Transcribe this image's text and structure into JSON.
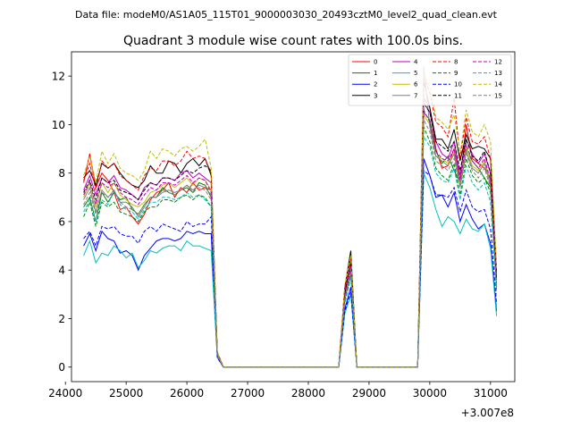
{
  "header": {
    "data_file": "Data file: modeM0/AS1A05_115T01_9000003030_20493cztM0_level2_quad_clean.evt"
  },
  "chart_data": {
    "type": "line",
    "title": "Quadrant 3 module wise count rates with 100.0s bins.",
    "xlabel": "",
    "ylabel": "",
    "offset_text": "+3.007e8",
    "xlim": [
      24100,
      31400
    ],
    "ylim": [
      -0.6,
      13.0
    ],
    "xticks": [
      24000,
      25000,
      26000,
      27000,
      28000,
      29000,
      30000,
      31000
    ],
    "xtick_labels": [
      "24000",
      "25000",
      "26000",
      "27000",
      "28000",
      "29000",
      "30000",
      "31000"
    ],
    "yticks": [
      0,
      2,
      4,
      6,
      8,
      10,
      12
    ],
    "ytick_labels": [
      "0",
      "2",
      "4",
      "6",
      "8",
      "10",
      "12"
    ],
    "grid": false,
    "legend_position": "top-right",
    "legend_columns": 4,
    "x": [
      24300,
      24400,
      24500,
      24600,
      24700,
      24800,
      24900,
      25000,
      25100,
      25200,
      25300,
      25400,
      25500,
      25600,
      25700,
      25800,
      25900,
      26000,
      26100,
      26200,
      26300,
      26400,
      26500,
      26600,
      26700,
      26800,
      26900,
      27000,
      27100,
      27200,
      27300,
      27400,
      27500,
      27600,
      27700,
      27800,
      27900,
      28000,
      28100,
      28200,
      28300,
      28400,
      28500,
      28600,
      28700,
      28800,
      28900,
      29000,
      29100,
      29200,
      29300,
      29400,
      29500,
      29600,
      29700,
      29800,
      29900,
      30000,
      30100,
      30200,
      30300,
      30400,
      30500,
      30600,
      30700,
      30800,
      30900,
      31000,
      31100
    ],
    "series": [
      {
        "name": "0",
        "color": "#ff0000",
        "dash": false,
        "values": [
          7.6,
          8.8,
          7.4,
          8.0,
          7.7,
          7.2,
          6.5,
          6.6,
          6.2,
          5.9,
          6.3,
          6.9,
          7.2,
          7.3,
          7.6,
          7.0,
          7.4,
          7.2,
          7.6,
          7.3,
          7.4,
          7.3,
          0.6,
          0,
          0,
          0,
          0,
          0,
          0,
          0,
          0,
          0,
          0,
          0,
          0,
          0,
          0,
          0,
          0,
          0,
          0,
          0,
          0,
          3.2,
          4.2,
          0,
          0,
          0,
          0,
          0,
          0,
          0,
          0,
          0,
          0,
          0,
          11.1,
          10.7,
          9.0,
          8.2,
          8.3,
          9.0,
          7.7,
          10.0,
          8.6,
          8.4,
          8.2,
          7.8,
          3.8
        ]
      },
      {
        "name": "1",
        "color": "#008000",
        "dash": false,
        "values": [
          6.6,
          7.0,
          6.0,
          7.2,
          6.8,
          7.2,
          6.9,
          7.0,
          6.5,
          6.3,
          6.7,
          7.0,
          7.0,
          7.4,
          7.2,
          7.1,
          7.3,
          7.4,
          7.2,
          7.6,
          7.5,
          7.0,
          0.5,
          0,
          0,
          0,
          0,
          0,
          0,
          0,
          0,
          0,
          0,
          0,
          0,
          0,
          0,
          0,
          0,
          0,
          0,
          0,
          0,
          2.8,
          3.9,
          0,
          0,
          0,
          0,
          0,
          0,
          0,
          0,
          0,
          0,
          0,
          10.5,
          10.2,
          8.9,
          8.4,
          8.7,
          8.1,
          7.6,
          9.0,
          8.5,
          8.2,
          7.8,
          7.4,
          3.3
        ]
      },
      {
        "name": "2",
        "color": "#0000ff",
        "dash": false,
        "values": [
          5.0,
          5.5,
          4.8,
          5.6,
          5.3,
          5.2,
          4.7,
          4.8,
          4.6,
          4.0,
          4.6,
          4.9,
          5.2,
          5.3,
          5.3,
          5.2,
          5.3,
          5.6,
          5.5,
          5.6,
          5.5,
          5.5,
          0.4,
          0,
          0,
          0,
          0,
          0,
          0,
          0,
          0,
          0,
          0,
          0,
          0,
          0,
          0,
          0,
          0,
          0,
          0,
          0,
          0,
          2.4,
          3.3,
          0,
          0,
          0,
          0,
          0,
          0,
          0,
          0,
          0,
          0,
          0,
          8.6,
          7.9,
          7.0,
          7.1,
          6.6,
          7.2,
          6.0,
          6.7,
          6.1,
          5.7,
          5.9,
          5.1,
          2.3
        ]
      },
      {
        "name": "3",
        "color": "#000000",
        "dash": false,
        "values": [
          7.8,
          8.1,
          7.5,
          8.4,
          8.2,
          8.4,
          8.0,
          7.7,
          7.5,
          7.4,
          7.7,
          8.3,
          8.0,
          8.0,
          8.5,
          8.4,
          8.0,
          8.4,
          8.6,
          8.3,
          8.6,
          7.9,
          0.6,
          0,
          0,
          0,
          0,
          0,
          0,
          0,
          0,
          0,
          0,
          0,
          0,
          0,
          0,
          0,
          0,
          0,
          0,
          0,
          0,
          3.3,
          4.8,
          0,
          0,
          0,
          0,
          0,
          0,
          0,
          0,
          0,
          0,
          0,
          11.8,
          10.7,
          9.4,
          9.4,
          9.0,
          9.8,
          8.5,
          9.6,
          9.0,
          9.1,
          9.0,
          8.6,
          4.0
        ]
      },
      {
        "name": "4",
        "color": "#bf00bf",
        "dash": false,
        "values": [
          7.3,
          7.9,
          7.1,
          7.8,
          7.6,
          7.9,
          7.4,
          7.3,
          7.1,
          6.9,
          7.4,
          7.6,
          7.5,
          7.8,
          7.8,
          7.7,
          8.0,
          8.1,
          7.8,
          8.0,
          7.8,
          7.6,
          0.6,
          0,
          0,
          0,
          0,
          0,
          0,
          0,
          0,
          0,
          0,
          0,
          0,
          0,
          0,
          0,
          0,
          0,
          0,
          0,
          0,
          3.1,
          4.3,
          0,
          0,
          0,
          0,
          0,
          0,
          0,
          0,
          0,
          0,
          0,
          10.9,
          10.5,
          9.3,
          8.8,
          8.6,
          9.3,
          7.9,
          9.4,
          8.8,
          8.4,
          8.8,
          8.0,
          3.6
        ]
      },
      {
        "name": "5",
        "color": "#00bfbf",
        "dash": false,
        "values": [
          4.6,
          5.2,
          4.3,
          4.7,
          4.6,
          5.0,
          4.8,
          4.5,
          4.7,
          4.1,
          4.4,
          4.8,
          4.7,
          4.9,
          5.0,
          5.0,
          4.8,
          5.2,
          5.0,
          5.0,
          4.9,
          4.8,
          0.4,
          0,
          0,
          0,
          0,
          0,
          0,
          0,
          0,
          0,
          0,
          0,
          0,
          0,
          0,
          0,
          0,
          0,
          0,
          0,
          0,
          2.2,
          3.0,
          0,
          0,
          0,
          0,
          0,
          0,
          0,
          0,
          0,
          0,
          0,
          8.0,
          7.4,
          6.5,
          5.8,
          6.2,
          6.0,
          5.5,
          6.1,
          5.7,
          5.6,
          5.9,
          4.9,
          2.1
        ]
      },
      {
        "name": "6",
        "color": "#bfbf00",
        "dash": false,
        "values": [
          7.0,
          7.6,
          6.6,
          7.6,
          7.2,
          7.6,
          7.1,
          6.9,
          6.7,
          6.6,
          6.8,
          7.2,
          7.3,
          7.5,
          7.6,
          7.4,
          7.6,
          7.8,
          7.5,
          7.8,
          7.7,
          7.3,
          0.5,
          0,
          0,
          0,
          0,
          0,
          0,
          0,
          0,
          0,
          0,
          0,
          0,
          0,
          0,
          0,
          0,
          0,
          0,
          0,
          0,
          2.9,
          4.1,
          0,
          0,
          0,
          0,
          0,
          0,
          0,
          0,
          0,
          0,
          0,
          10.4,
          10.0,
          8.7,
          8.6,
          8.4,
          8.8,
          7.6,
          9.1,
          8.3,
          8.1,
          8.5,
          7.6,
          3.4
        ]
      },
      {
        "name": "7",
        "color": "#808080",
        "dash": false,
        "values": [
          6.9,
          7.4,
          6.4,
          7.3,
          7.0,
          7.3,
          6.8,
          6.8,
          6.6,
          6.2,
          6.6,
          7.0,
          7.0,
          7.2,
          7.3,
          7.2,
          7.3,
          7.5,
          7.3,
          7.5,
          7.4,
          7.1,
          0.5,
          0,
          0,
          0,
          0,
          0,
          0,
          0,
          0,
          0,
          0,
          0,
          0,
          0,
          0,
          0,
          0,
          0,
          0,
          0,
          0,
          2.8,
          4.0,
          0,
          0,
          0,
          0,
          0,
          0,
          0,
          0,
          0,
          0,
          0,
          12.4,
          9.9,
          8.7,
          8.5,
          8.3,
          8.8,
          7.5,
          8.9,
          8.2,
          8.0,
          8.4,
          7.5,
          3.3
        ]
      },
      {
        "name": "8",
        "color": "#ff0000",
        "dash": true,
        "values": [
          7.7,
          8.4,
          7.3,
          8.5,
          8.2,
          8.4,
          7.9,
          7.7,
          7.5,
          7.3,
          7.9,
          8.2,
          8.1,
          8.5,
          8.5,
          8.3,
          8.5,
          8.9,
          8.6,
          8.7,
          8.6,
          8.0,
          0.6,
          0,
          0,
          0,
          0,
          0,
          0,
          0,
          0,
          0,
          0,
          0,
          0,
          0,
          0,
          0,
          0,
          0,
          0,
          0,
          0,
          3.3,
          4.5,
          0,
          0,
          0,
          0,
          0,
          0,
          0,
          0,
          0,
          0,
          0,
          12.0,
          11.3,
          10.1,
          9.9,
          9.5,
          11.1,
          8.6,
          10.3,
          9.3,
          9.2,
          9.5,
          8.6,
          3.9
        ]
      },
      {
        "name": "9",
        "color": "#008000",
        "dash": true,
        "values": [
          6.2,
          6.8,
          5.8,
          6.8,
          6.6,
          6.8,
          6.4,
          6.3,
          6.2,
          6.0,
          6.4,
          6.6,
          6.6,
          6.9,
          6.9,
          6.8,
          7.0,
          7.1,
          6.9,
          7.1,
          7.0,
          6.6,
          0.5,
          0,
          0,
          0,
          0,
          0,
          0,
          0,
          0,
          0,
          0,
          0,
          0,
          0,
          0,
          0,
          0,
          0,
          0,
          0,
          0,
          2.7,
          3.8,
          0,
          0,
          0,
          0,
          0,
          0,
          0,
          0,
          0,
          0,
          0,
          9.9,
          9.3,
          8.2,
          7.9,
          7.7,
          8.4,
          7.1,
          8.6,
          7.9,
          7.6,
          7.8,
          7.2,
          3.2
        ]
      },
      {
        "name": "10",
        "color": "#0000ff",
        "dash": true,
        "values": [
          5.3,
          5.6,
          5.0,
          5.8,
          5.7,
          5.8,
          5.5,
          5.4,
          5.4,
          5.1,
          5.6,
          5.8,
          5.6,
          5.9,
          5.8,
          5.7,
          5.6,
          6.0,
          5.8,
          5.9,
          5.9,
          6.2,
          0.4,
          0,
          0,
          0,
          0,
          0,
          0,
          0,
          0,
          0,
          0,
          0,
          0,
          0,
          0,
          0,
          0,
          0,
          0,
          0,
          0,
          2.3,
          3.1,
          0,
          0,
          0,
          0,
          0,
          0,
          0,
          0,
          0,
          0,
          0,
          8.1,
          7.9,
          7.1,
          7.1,
          7.0,
          7.4,
          6.4,
          7.3,
          6.6,
          6.4,
          6.5,
          5.7,
          2.6
        ]
      },
      {
        "name": "11",
        "color": "#000000",
        "dash": true,
        "values": [
          7.2,
          7.7,
          6.9,
          7.8,
          7.6,
          7.7,
          7.3,
          7.2,
          7.1,
          6.9,
          7.3,
          7.6,
          7.5,
          7.8,
          7.8,
          7.7,
          7.9,
          8.1,
          8.0,
          8.2,
          8.3,
          8.1,
          0.6,
          0,
          0,
          0,
          0,
          0,
          0,
          0,
          0,
          0,
          0,
          0,
          0,
          0,
          0,
          0,
          0,
          0,
          0,
          0,
          0,
          3.0,
          4.4,
          0,
          0,
          0,
          0,
          0,
          0,
          0,
          0,
          0,
          0,
          0,
          10.9,
          10.5,
          9.3,
          9.1,
          8.9,
          9.3,
          8.1,
          9.4,
          8.7,
          8.5,
          8.9,
          8.0,
          3.6
        ]
      },
      {
        "name": "12",
        "color": "#bf00bf",
        "dash": true,
        "values": [
          7.1,
          7.6,
          6.7,
          7.6,
          7.4,
          7.6,
          7.2,
          7.0,
          6.9,
          6.7,
          7.1,
          7.4,
          7.3,
          7.6,
          7.6,
          7.5,
          7.7,
          7.9,
          7.6,
          7.8,
          7.7,
          7.2,
          0.5,
          0,
          0,
          0,
          0,
          0,
          0,
          0,
          0,
          0,
          0,
          0,
          0,
          0,
          0,
          0,
          0,
          0,
          0,
          0,
          0,
          2.9,
          4.1,
          0,
          0,
          0,
          0,
          0,
          0,
          0,
          0,
          0,
          0,
          0,
          10.6,
          10.1,
          8.9,
          8.6,
          8.5,
          9.0,
          7.7,
          9.2,
          8.5,
          8.2,
          8.6,
          7.7,
          3.4
        ]
      },
      {
        "name": "13",
        "color": "#00bfbf",
        "dash": true,
        "values": [
          6.4,
          6.9,
          6.0,
          6.9,
          6.7,
          7.3,
          6.7,
          6.5,
          6.4,
          6.1,
          6.5,
          6.8,
          6.8,
          7.0,
          7.0,
          6.9,
          7.0,
          7.2,
          7.0,
          7.1,
          6.9,
          6.6,
          0.5,
          0,
          0,
          0,
          0,
          0,
          0,
          0,
          0,
          0,
          0,
          0,
          0,
          0,
          0,
          0,
          0,
          0,
          0,
          0,
          0,
          2.6,
          3.7,
          0,
          0,
          0,
          0,
          0,
          0,
          0,
          0,
          0,
          0,
          0,
          9.5,
          9.1,
          8.0,
          7.7,
          7.6,
          8.2,
          6.9,
          8.3,
          7.6,
          7.3,
          7.6,
          6.8,
          3.0
        ]
      },
      {
        "name": "14",
        "color": "#bfbf00",
        "dash": true,
        "values": [
          7.9,
          8.7,
          7.6,
          8.9,
          8.4,
          8.8,
          8.2,
          8.0,
          7.9,
          7.7,
          8.1,
          8.9,
          8.6,
          9.0,
          8.9,
          8.7,
          9.0,
          9.1,
          8.9,
          9.1,
          9.4,
          8.2,
          0.6,
          0,
          0,
          0,
          0,
          0,
          0,
          0,
          0,
          0,
          0,
          0,
          0,
          0,
          0,
          0,
          0,
          0,
          0,
          0,
          0,
          3.4,
          4.6,
          0,
          0,
          0,
          0,
          0,
          0,
          0,
          0,
          0,
          0,
          0,
          12.0,
          11.6,
          10.3,
          10.1,
          9.8,
          10.4,
          8.8,
          10.6,
          9.7,
          9.5,
          10.0,
          9.3,
          4.1
        ]
      },
      {
        "name": "15",
        "color": "#808080",
        "dash": true,
        "values": [
          6.7,
          7.2,
          6.3,
          7.2,
          7.0,
          7.2,
          6.8,
          6.6,
          6.5,
          6.3,
          6.7,
          7.0,
          7.0,
          7.3,
          7.2,
          7.1,
          7.3,
          7.5,
          7.2,
          7.4,
          7.3,
          6.9,
          0.5,
          0,
          0,
          0,
          0,
          0,
          0,
          0,
          0,
          0,
          0,
          0,
          0,
          0,
          0,
          0,
          0,
          0,
          0,
          0,
          0,
          2.8,
          3.9,
          0,
          0,
          0,
          0,
          0,
          0,
          0,
          0,
          0,
          0,
          0,
          10.2,
          9.7,
          8.5,
          8.3,
          8.1,
          8.6,
          7.4,
          8.8,
          8.1,
          7.8,
          8.2,
          7.4,
          3.3
        ]
      }
    ]
  }
}
